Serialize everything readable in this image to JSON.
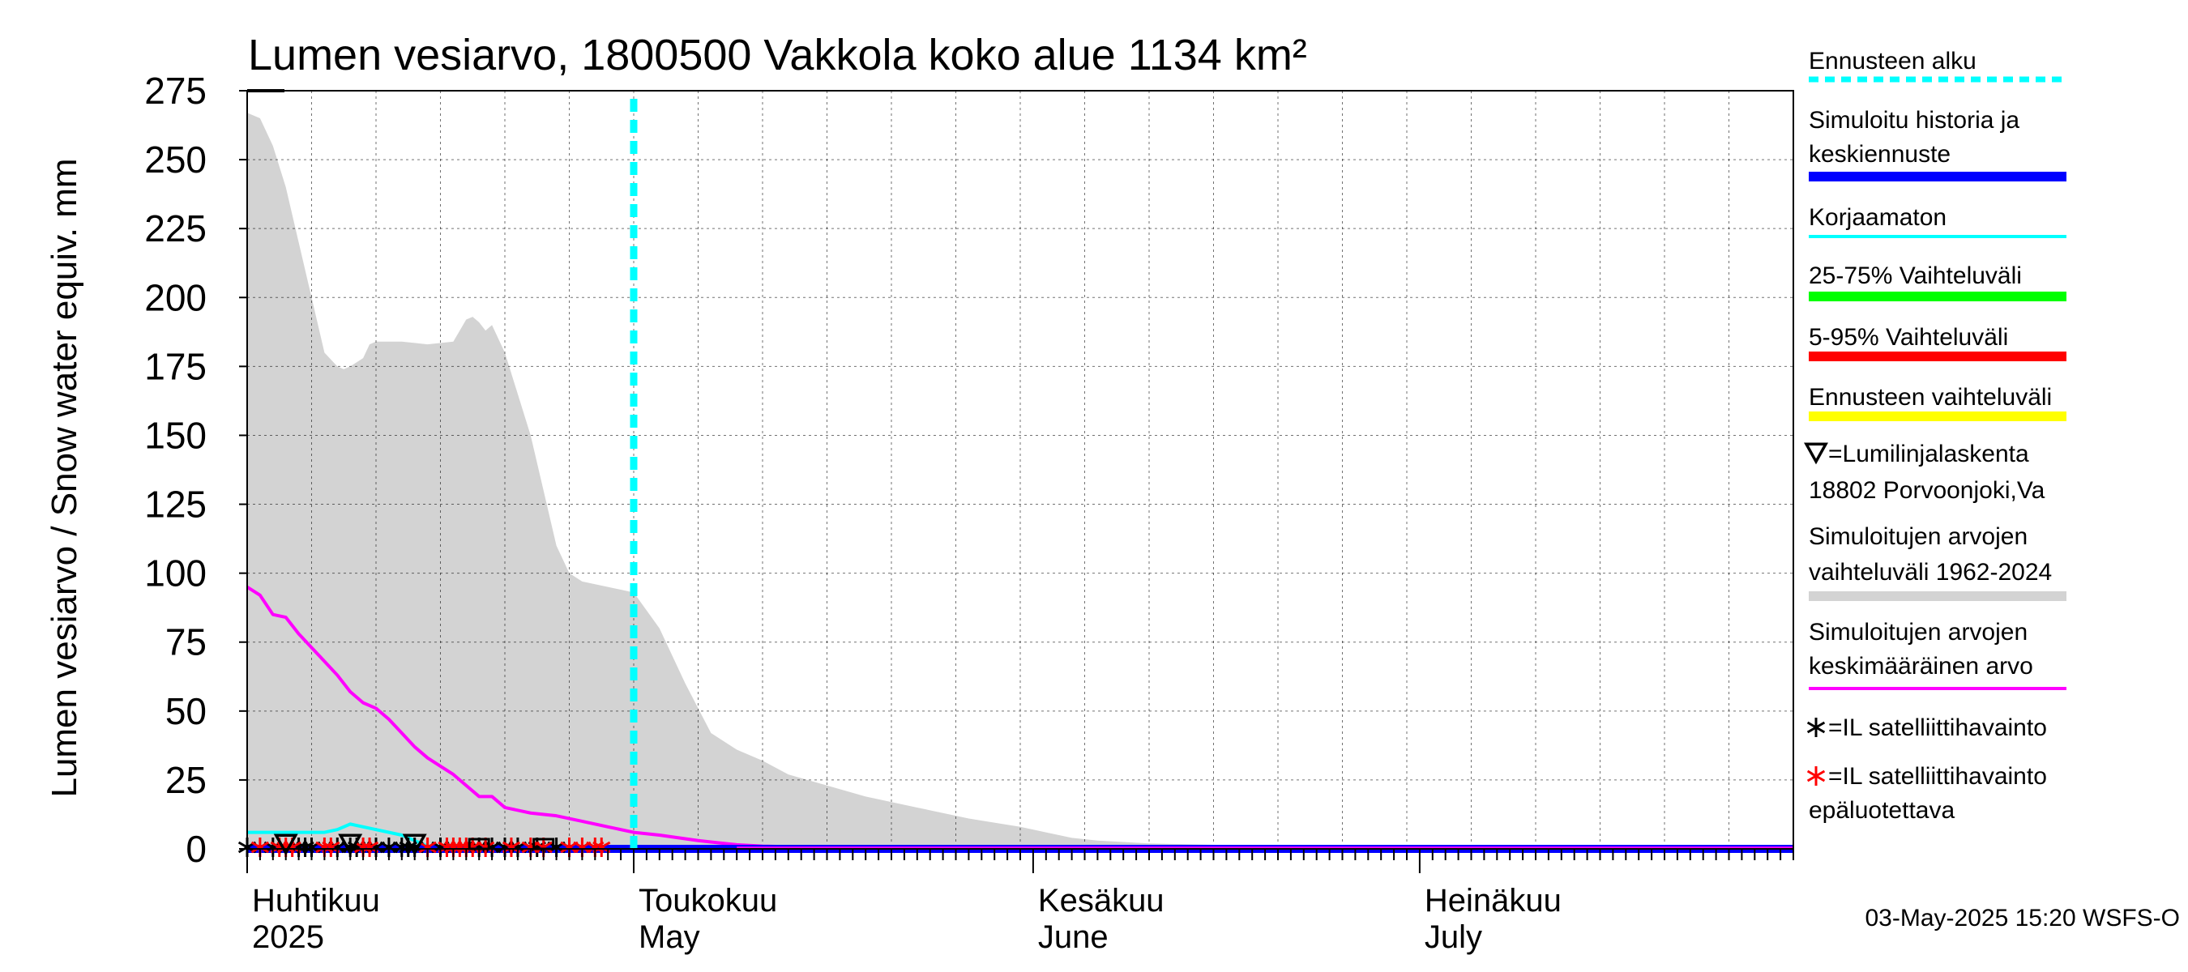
{
  "chart_data": {
    "type": "area",
    "title": "Lumen vesiarvo, 1800500 Vakkola koko alue 1134 km²",
    "ylabel": "Lumen vesiarvo / Snow water equiv.    mm",
    "ylim": [
      0,
      275
    ],
    "yticks": [
      0,
      25,
      50,
      75,
      100,
      125,
      150,
      175,
      200,
      225,
      250,
      275
    ],
    "xlim_days": [
      0,
      120
    ],
    "forecast_start_day": 30,
    "months": [
      {
        "day": 0,
        "fi": "Huhtikuu",
        "en": "2025"
      },
      {
        "day": 30,
        "fi": "Toukokuu",
        "en": "May"
      },
      {
        "day": 61,
        "fi": "Kesäkuu",
        "en": "June"
      },
      {
        "day": 91,
        "fi": "Heinäkuu",
        "en": "July"
      }
    ],
    "band_1962_2024": {
      "x": [
        0,
        1,
        2,
        3,
        4,
        5,
        6,
        7,
        7.5,
        8,
        9,
        9.5,
        10,
        11,
        12,
        14,
        16,
        17,
        17.5,
        18,
        18.5,
        19,
        20,
        21,
        22,
        23,
        24,
        25,
        26,
        27,
        28,
        29,
        30,
        32,
        34,
        36,
        38,
        40,
        42,
        45,
        48,
        52,
        56,
        60,
        62,
        64,
        66,
        70,
        80,
        90,
        100,
        110,
        120
      ],
      "upper": [
        267,
        265,
        255,
        240,
        220,
        200,
        180,
        175,
        174,
        175,
        178,
        183,
        184,
        184,
        184,
        183,
        184,
        192,
        193,
        191,
        188,
        190,
        180,
        165,
        150,
        130,
        110,
        100,
        97,
        96,
        95,
        94,
        93,
        80,
        60,
        42,
        36,
        32,
        27,
        23,
        19,
        15,
        11,
        8,
        6,
        4,
        3,
        2,
        1,
        0.5,
        0.3,
        0.2,
        0.1
      ],
      "lower": 0
    },
    "series": [
      {
        "name": "Simuloitujen arvojen keskimääräinen arvo",
        "color": "#ff00ff",
        "x": [
          0,
          1,
          2,
          3,
          4,
          5,
          6,
          7,
          8,
          9,
          10,
          11,
          12,
          13,
          14,
          15,
          16,
          17,
          18,
          19,
          20,
          22,
          24,
          26,
          28,
          30,
          32,
          35,
          38,
          40,
          45,
          50,
          60,
          70,
          80,
          90,
          100,
          110,
          120
        ],
        "y": [
          95,
          92,
          85,
          84,
          78,
          73,
          68,
          63,
          57,
          53,
          51,
          47,
          42,
          37,
          33,
          30,
          27,
          23,
          19,
          19,
          15,
          13,
          12,
          10,
          8,
          6,
          5,
          3,
          1.5,
          1,
          0.5,
          0.2,
          0.1,
          0.1,
          0.1,
          0.1,
          0.1,
          0.1,
          0.1
        ]
      },
      {
        "name": "Korjaamaton",
        "color": "#00ffff",
        "x": [
          0,
          4,
          6,
          7,
          8,
          9,
          10,
          12,
          13,
          14,
          30,
          120
        ],
        "y": [
          6,
          6,
          6,
          7,
          9,
          8,
          7,
          5,
          3,
          1,
          0,
          0
        ]
      },
      {
        "name": "Simuloitu historia ja keskiennuste",
        "color": "#0000ff",
        "x": [
          0,
          120
        ],
        "y": [
          0,
          0
        ]
      }
    ],
    "markers": {
      "il_black_days": [
        0,
        2,
        4,
        4.5,
        5,
        7,
        8,
        8.5,
        10,
        11,
        12,
        12.5,
        13,
        15,
        18,
        19,
        20,
        21,
        22.5,
        24
      ],
      "il_red_days": [
        1,
        2.5,
        3,
        3.5,
        6,
        6.5,
        9,
        9.5,
        14,
        15.5,
        16,
        16.5,
        17,
        17.5,
        18.5,
        20.5,
        22,
        23,
        25,
        26,
        27,
        27.5
      ],
      "triangle_days": [
        8,
        3,
        13
      ],
      "box_days": [
        18,
        23
      ]
    },
    "legend": [
      {
        "line1": "Ennusteen alku",
        "line2": "",
        "color": "#00ffff",
        "style": "dashed"
      },
      {
        "line1": "Simuloitu historia ja",
        "line2": "keskiennuste",
        "color": "#0000ff",
        "style": "thick"
      },
      {
        "line1": "Korjaamaton",
        "line2": "",
        "color": "#00ffff",
        "style": "solid"
      },
      {
        "line1": "25-75% Vaihteluväli",
        "line2": "",
        "color": "#00ff00",
        "style": "thick"
      },
      {
        "line1": "5-95% Vaihteluväli",
        "line2": "",
        "color": "#ff0000",
        "style": "thick"
      },
      {
        "line1": "Ennusteen vaihteluväli",
        "line2": "",
        "color": "#ffff00",
        "style": "thick"
      },
      {
        "line1": "=Lumilinjalaskenta",
        "line2": "18802 Porvoonjoki,Va",
        "color": "#000000",
        "style": "triangle"
      },
      {
        "line1": "Simuloitujen arvojen",
        "line2": "vaihteluväli 1962-2024",
        "color": "#d3d3d3",
        "style": "thick"
      },
      {
        "line1": "Simuloitujen arvojen",
        "line2": "keskimääräinen arvo",
        "color": "#ff00ff",
        "style": "solid"
      },
      {
        "line1": "=IL satelliittihavainto",
        "line2": "",
        "color": "#000000",
        "style": "star"
      },
      {
        "line1": "=IL satelliittihavainto",
        "line2": "epäluotettava",
        "color": "#ff0000",
        "style": "star"
      }
    ],
    "timestamp": "03-May-2025 15:20 WSFS-O"
  }
}
